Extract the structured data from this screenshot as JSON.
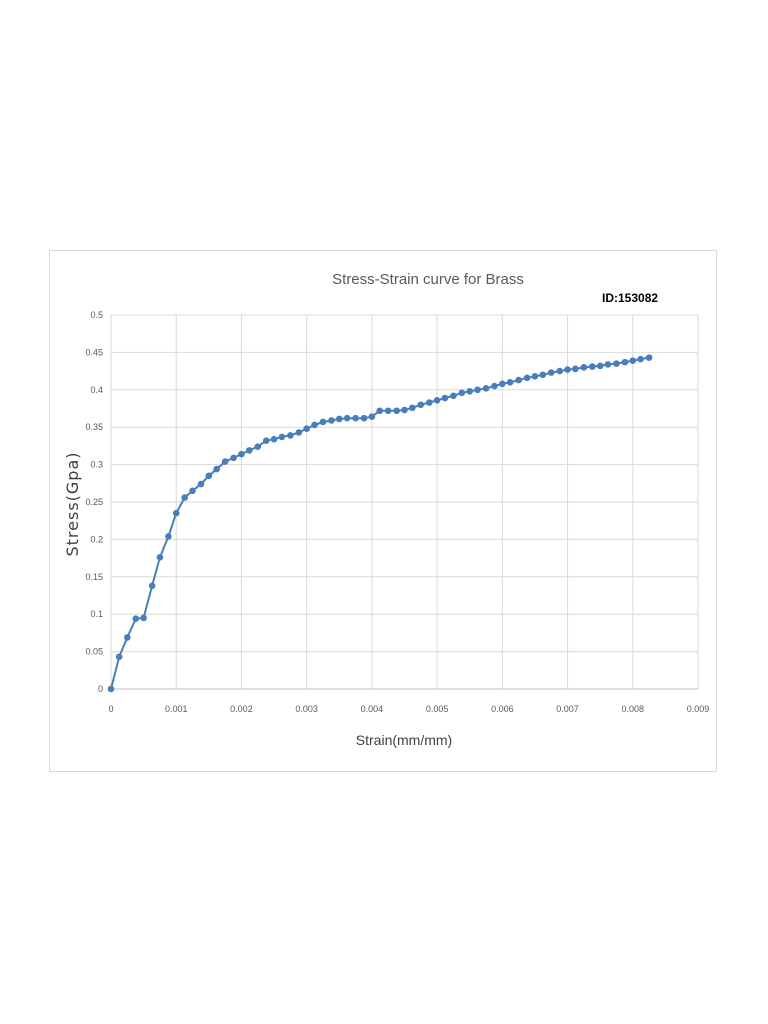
{
  "chart_data": {
    "type": "line",
    "title": "Stress-Strain curve for Brass",
    "annotation": "ID:153082",
    "xlabel": "Strain(mm/mm)",
    "ylabel": "Stress(Gpa)",
    "xlim": [
      0,
      0.009
    ],
    "ylim": [
      0,
      0.5
    ],
    "x_ticks": [
      "0",
      "0.001",
      "0.002",
      "0.003",
      "0.004",
      "0.005",
      "0.006",
      "0.007",
      "0.008",
      "0.009"
    ],
    "y_ticks": [
      "0",
      "0.05",
      "0.1",
      "0.15",
      "0.2",
      "0.25",
      "0.3",
      "0.35",
      "0.4",
      "0.45",
      "0.5"
    ],
    "grid": true,
    "marker": "circle",
    "series_color": "#4a7ebb",
    "series": [
      {
        "x": [
          0,
          0.000125,
          0.00025,
          0.00038,
          0.0005,
          0.00063,
          0.00075,
          0.00088,
          0.001,
          0.00113,
          0.00125,
          0.00138,
          0.0015,
          0.00162,
          0.00175,
          0.00188,
          0.002,
          0.00212,
          0.00225,
          0.00238,
          0.0025,
          0.00262,
          0.00275,
          0.00288,
          0.003,
          0.00312,
          0.00325,
          0.00338,
          0.0035,
          0.00362,
          0.00375,
          0.00388,
          0.004,
          0.00412,
          0.00425,
          0.00438,
          0.0045,
          0.00462,
          0.00475,
          0.00488,
          0.005,
          0.00512,
          0.00525,
          0.00538,
          0.0055,
          0.00562,
          0.00575,
          0.00588,
          0.006,
          0.00612,
          0.00625,
          0.00638,
          0.0065,
          0.00662,
          0.00675,
          0.00688,
          0.007,
          0.00712,
          0.00725,
          0.00738,
          0.0075,
          0.00762,
          0.00775,
          0.00788,
          0.008,
          0.00812,
          0.00825
        ],
        "y": [
          0,
          0.043,
          0.069,
          0.094,
          0.095,
          0.138,
          0.176,
          0.204,
          0.235,
          0.256,
          0.265,
          0.274,
          0.285,
          0.294,
          0.304,
          0.309,
          0.314,
          0.319,
          0.324,
          0.332,
          0.334,
          0.337,
          0.339,
          0.343,
          0.348,
          0.353,
          0.357,
          0.359,
          0.361,
          0.362,
          0.362,
          0.362,
          0.364,
          0.372,
          0.372,
          0.372,
          0.373,
          0.376,
          0.38,
          0.383,
          0.386,
          0.389,
          0.392,
          0.396,
          0.398,
          0.4,
          0.402,
          0.405,
          0.408,
          0.41,
          0.413,
          0.416,
          0.418,
          0.42,
          0.423,
          0.425,
          0.427,
          0.428,
          0.43,
          0.431,
          0.432,
          0.434,
          0.435,
          0.437,
          0.439,
          0.441,
          0.443
        ]
      }
    ]
  }
}
